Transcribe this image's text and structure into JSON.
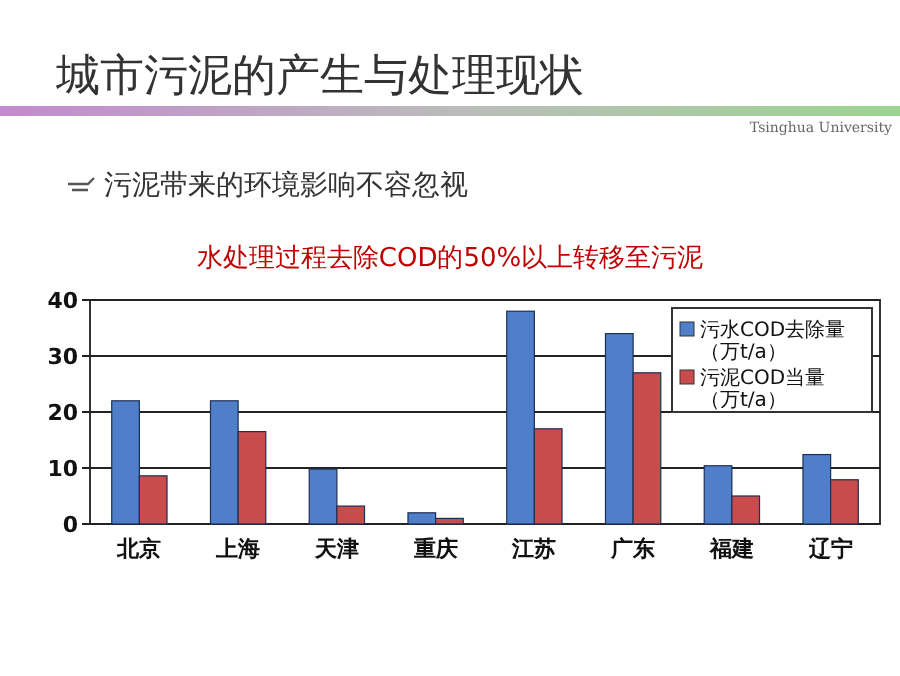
{
  "chart_data": {
    "type": "bar",
    "title": "水处理过程去除COD的50%以上转移至污泥",
    "annotations": [
      "城市污泥的产生与处理现状",
      "污泥带来的环境影响不容忽视",
      "Tsinghua University"
    ],
    "categories": [
      "北京",
      "上海",
      "天津",
      "重庆",
      "江苏",
      "广东",
      "福建",
      "辽宁"
    ],
    "series": [
      {
        "name": "污水COD去除量（万t/a）",
        "color": "#4f7fc8",
        "values": [
          22,
          22,
          9.8,
          2,
          38,
          34,
          10.4,
          12.4
        ]
      },
      {
        "name": "污泥COD当量（万t/a）",
        "color": "#c94c4c",
        "values": [
          8.6,
          16.5,
          3.2,
          1,
          17,
          27,
          5,
          7.9
        ]
      }
    ],
    "ylim": [
      0,
      40
    ],
    "yticks": [
      0,
      10,
      20,
      30,
      40
    ],
    "grid": "y",
    "legend": "top right"
  }
}
